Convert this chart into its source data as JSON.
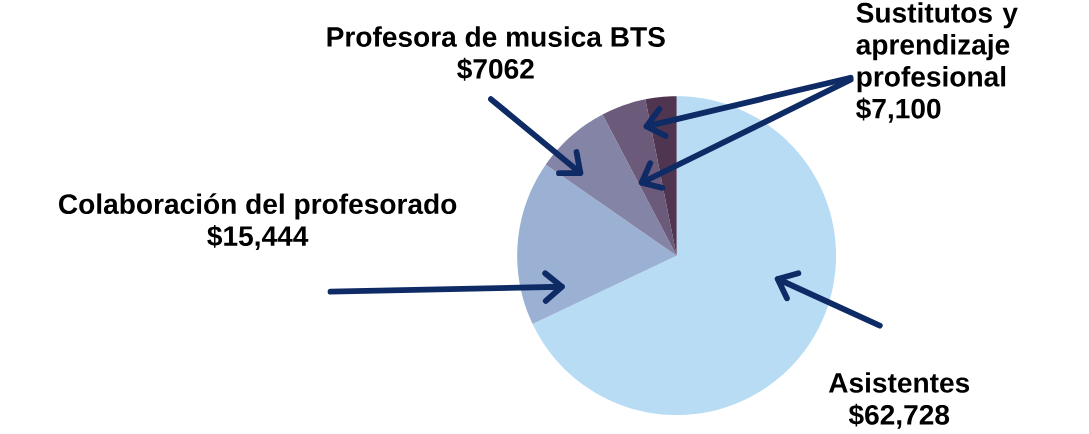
{
  "chart_data": {
    "type": "pie",
    "categories": [
      "Asistentes",
      "Colaboración del profesorado",
      "Profesora de musica BTS",
      null,
      null
    ],
    "values": [
      62728,
      15444,
      7062,
      4200,
      2900
    ],
    "value_labels": [
      "$62,728",
      "$15,444",
      "$7062",
      null,
      null
    ],
    "colors": [
      "#b9dcf5",
      "#9bb1d3",
      "#8484a6",
      "#6c5a7b",
      "#4f3550"
    ],
    "annotations": [
      "Sustitutos y aprendizaje profesional $7,100"
    ]
  }
}
